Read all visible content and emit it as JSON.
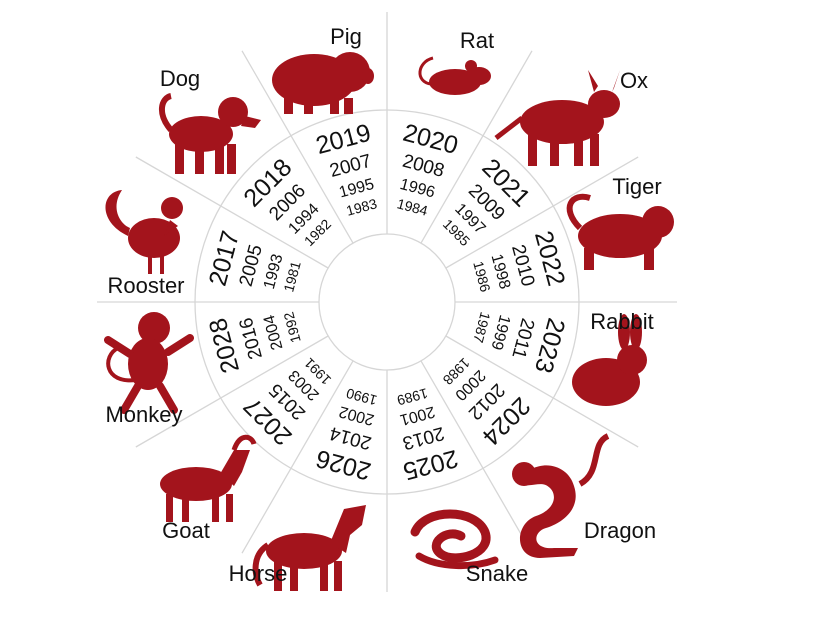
{
  "colors": {
    "silhouette": "#a3141c",
    "text": "#111111",
    "lines": "#d6d6d6"
  },
  "animals": [
    {
      "name": "Rat",
      "years": [
        "2020",
        "2008",
        "1996",
        "1984"
      ],
      "icon": "rat-icon"
    },
    {
      "name": "Ox",
      "years": [
        "2021",
        "2009",
        "1997",
        "1985"
      ],
      "icon": "ox-icon"
    },
    {
      "name": "Tiger",
      "years": [
        "2022",
        "2010",
        "1998",
        "1986"
      ],
      "icon": "tiger-icon"
    },
    {
      "name": "Rabbit",
      "years": [
        "2023",
        "2011",
        "1999",
        "1987"
      ],
      "icon": "rabbit-icon"
    },
    {
      "name": "Dragon",
      "years": [
        "2024",
        "2012",
        "2000",
        "1988"
      ],
      "icon": "dragon-icon"
    },
    {
      "name": "Snake",
      "years": [
        "2025",
        "2013",
        "2001",
        "1989"
      ],
      "icon": "snake-icon"
    },
    {
      "name": "Horse",
      "years": [
        "2026",
        "2014",
        "2002",
        "1990"
      ],
      "icon": "horse-icon"
    },
    {
      "name": "Goat",
      "years": [
        "2027",
        "2015",
        "2003",
        "1991"
      ],
      "icon": "goat-icon"
    },
    {
      "name": "Monkey",
      "years": [
        "2028",
        "2016",
        "2004",
        "1992"
      ],
      "icon": "monkey-icon"
    },
    {
      "name": "Rooster",
      "years": [
        "2017",
        "2005",
        "1993",
        "1981"
      ],
      "icon": "rooster-icon"
    },
    {
      "name": "Dog",
      "years": [
        "2018",
        "2006",
        "1994",
        "1982"
      ],
      "icon": "dog-icon"
    },
    {
      "name": "Pig",
      "years": [
        "2019",
        "2007",
        "1995",
        "1983"
      ],
      "icon": "pig-icon"
    }
  ]
}
